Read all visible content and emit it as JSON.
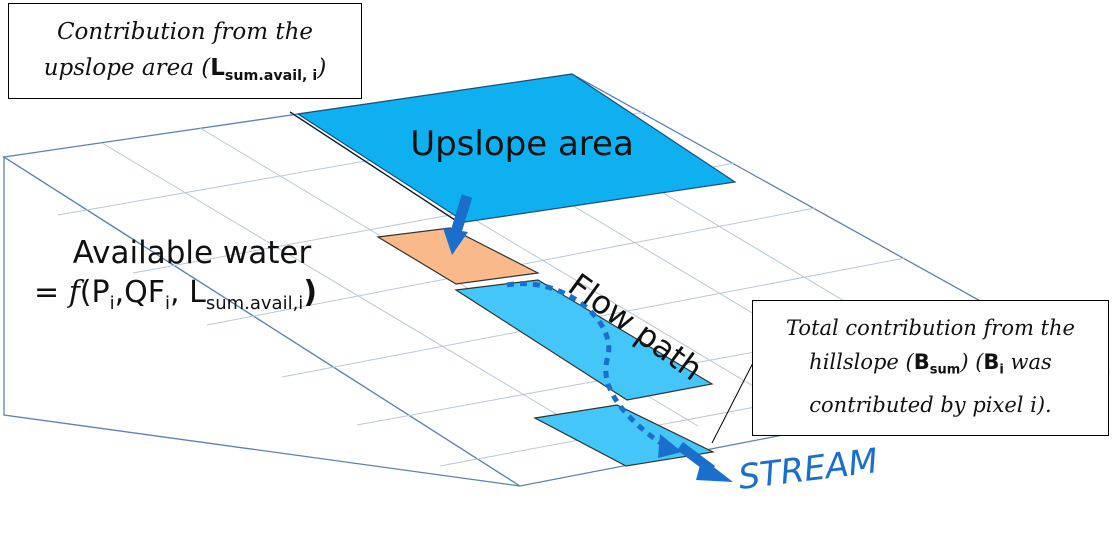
{
  "colors": {
    "grid_line": "#b8c8d8",
    "outline": "#5a82b4",
    "upslope_fill": "#0fb0f0",
    "flow_cell_fill": "#44c6f8",
    "pixel_i_fill": "#f9b98a",
    "arrow": "#1a6fcc",
    "stream_text": "#1a6fcc"
  },
  "labels": {
    "upslope_area": "Upslope area",
    "available_water_line1": "Available water",
    "available_water_eq": "= ",
    "func_f": "f",
    "paren_open": "(P",
    "sub_i_1": "i",
    "qf": ",QF",
    "sub_i_2": "i",
    "l_comma": ", L",
    "sub_sum_avail": "sum.avail,i",
    "paren_close": ")",
    "flow_path": "Flow path",
    "stream": "STREAM"
  },
  "callouts": {
    "upslope": {
      "line1": "Contribution from the",
      "line2_prefix": "upslope area (",
      "symbol": "L",
      "symbol_sub": "sum.avail, i",
      "line2_suffix": ")"
    },
    "hillslope": {
      "line1": "Total contribution from the",
      "line2_prefix": "hillslope (",
      "symbol_b": "B",
      "symbol_b_sub": "sum",
      "line2_mid": ") (",
      "symbol_bi": "B",
      "symbol_bi_sub": "i",
      "line2_suffix": " was",
      "line3": "contributed by pixel i)."
    }
  }
}
